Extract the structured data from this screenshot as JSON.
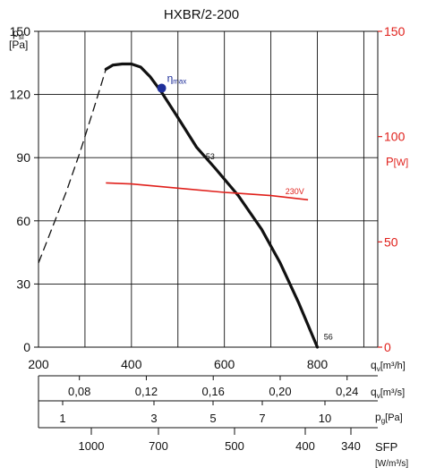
{
  "chart_data": {
    "type": "line",
    "title": "HXBR/2-200",
    "y_axis": {
      "label_main": "p",
      "label_sub": "sf",
      "unit": "[Pa]",
      "ticks": [
        0,
        30,
        60,
        90,
        120,
        150
      ],
      "range": [
        0,
        150
      ]
    },
    "x_axis": {
      "label_main": "q",
      "label_sub": "v",
      "unit": "[m³/h]",
      "ticks": [
        200,
        400,
        600,
        800
      ],
      "range": [
        200,
        930
      ]
    },
    "power_axis": {
      "label": "P",
      "unit": "[W]",
      "ticks": [
        0,
        50,
        100,
        150
      ],
      "range": [
        0,
        150
      ]
    },
    "q_ms_axis": {
      "label_main": "q",
      "label_sub": "v",
      "unit": "[m³/s]",
      "ticks": [
        "0,08",
        "0,12",
        "0,16",
        "0,20",
        "0,24"
      ],
      "values": [
        0.08,
        0.12,
        0.16,
        0.2,
        0.24
      ]
    },
    "pg_axis": {
      "label_main": "p",
      "label_sub": "g",
      "unit": "[Pa]",
      "ticks": [
        "1",
        "3",
        "5",
        "7",
        "10"
      ],
      "values": [
        1,
        3,
        5,
        7,
        10
      ]
    },
    "sfp_axis": {
      "label": "SFP",
      "unit": "[W/m³/s]",
      "ticks": [
        "1000",
        "700",
        "500",
        "400",
        "340"
      ],
      "values": [
        1000,
        700,
        500,
        400,
        340
      ]
    },
    "series": [
      {
        "role": "fan-curve-dashed",
        "x": [
          200,
          230,
          260,
          290,
          320,
          345
        ],
        "y": [
          40,
          57,
          74,
          93,
          114,
          132
        ]
      },
      {
        "role": "fan-curve",
        "x": [
          345,
          360,
          380,
          400,
          420,
          440,
          465,
          500,
          540,
          580,
          630,
          680,
          720,
          760,
          800
        ],
        "y": [
          132,
          134,
          134.5,
          134.5,
          133,
          128.5,
          121,
          109,
          95,
          85,
          72,
          56,
          40,
          21,
          0
        ]
      },
      {
        "role": "power-curve",
        "name": "230V",
        "x": [
          345,
          400,
          500,
          600,
          700,
          780
        ],
        "y_power": [
          78,
          77.5,
          75.5,
          73.5,
          72,
          70
        ]
      }
    ],
    "annotations": {
      "eta_label": "η",
      "eta_sub": "max",
      "eta_point": {
        "x": 465,
        "y": 123
      },
      "label_53": {
        "text": "53",
        "x": 560,
        "y": 90
      },
      "label_56": {
        "text": "56",
        "x": 812,
        "y": 2
      }
    },
    "grid": true
  }
}
